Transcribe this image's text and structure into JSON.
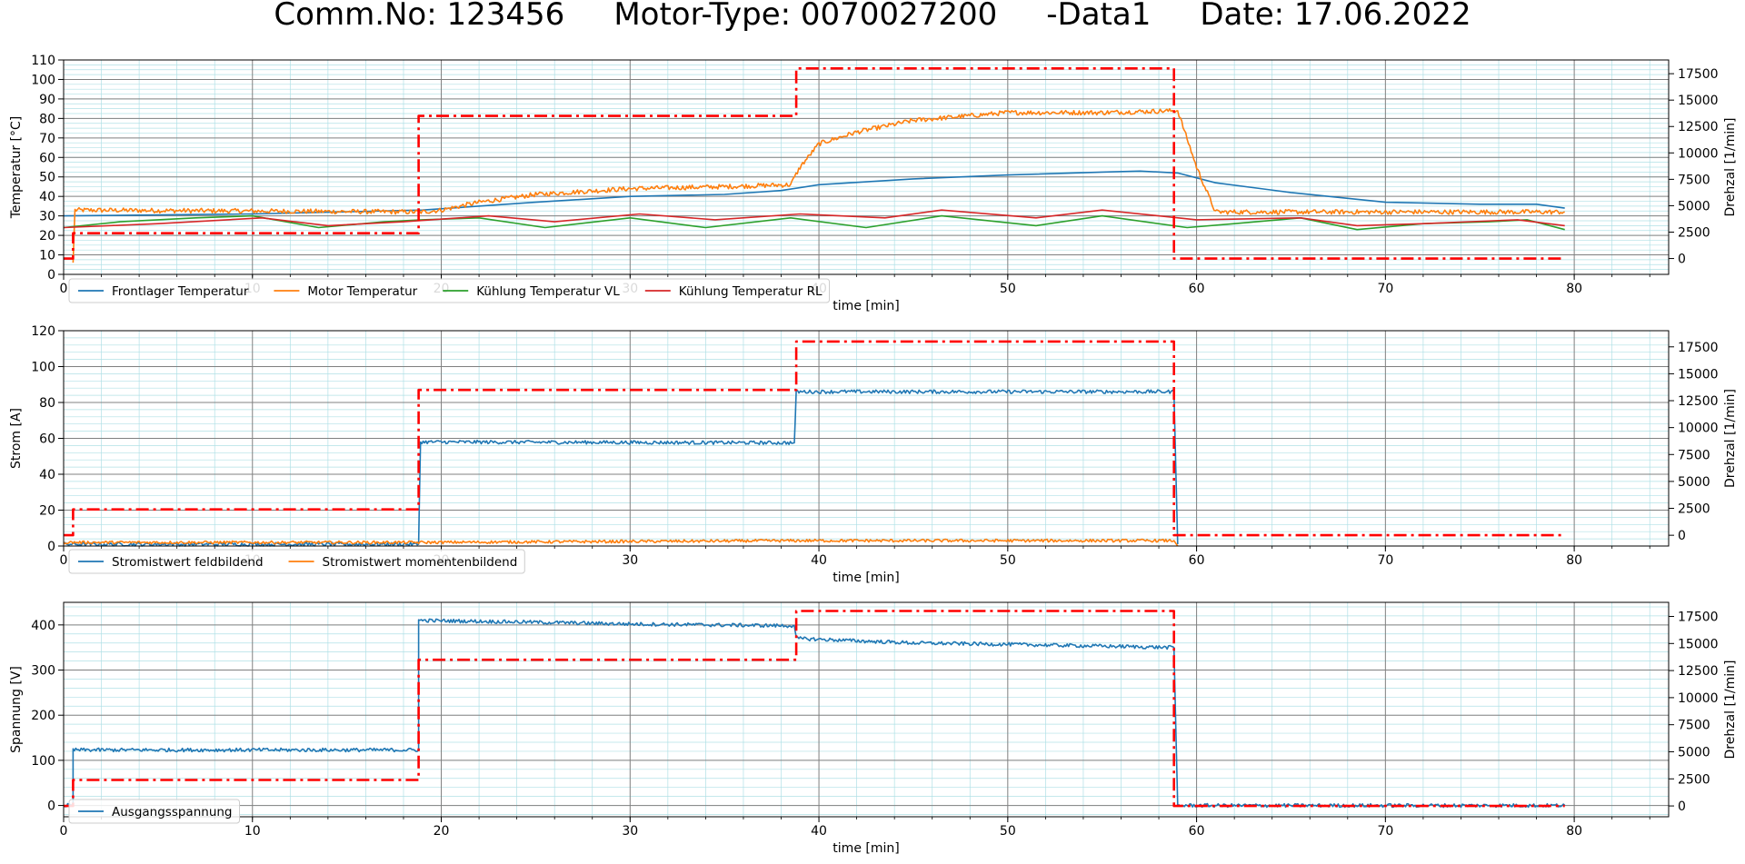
{
  "window": {
    "title": "Comm.No: 123456     Motor-Type: 0070027200     -Data1     Date: 17.06.2022"
  },
  "colors": {
    "blue": "#1f77b4",
    "orange": "#ff7f0e",
    "green": "#2ca02c",
    "red": "#d62728",
    "speed": "#ff0000",
    "grid_major": "#808080",
    "grid_minor": "#b0e0e6"
  },
  "chart_data": [
    {
      "type": "line",
      "xlabel": "time [min]",
      "ylabel": "Temperatur [°C]",
      "y2label": "Drehzal [1/min]",
      "xlim": [
        0,
        85
      ],
      "ylim": [
        0,
        110
      ],
      "y2lim": [
        -1500,
        18800
      ],
      "xticks": [
        0,
        10,
        20,
        30,
        40,
        50,
        60,
        70,
        80
      ],
      "yticks": [
        0,
        10,
        20,
        30,
        40,
        50,
        60,
        70,
        80,
        90,
        100,
        110
      ],
      "y2ticks": [
        0,
        2500,
        5000,
        7500,
        10000,
        12500,
        15000,
        17500
      ],
      "grid": true,
      "legend_position": "bottom-left",
      "series": [
        {
          "name": "Frontlager Temperatur",
          "axis": "left",
          "color": "#1f77b4",
          "noise": 0,
          "x": [
            0,
            10,
            19,
            25,
            30,
            35,
            38,
            40,
            45,
            50,
            55,
            57,
            59,
            61,
            65,
            70,
            75,
            78,
            79.5
          ],
          "y": [
            30,
            31,
            33,
            37,
            40,
            41,
            43,
            46,
            49,
            51,
            52.5,
            53,
            52,
            47,
            42,
            37,
            36,
            36,
            34
          ]
        },
        {
          "name": "Motor Temperatur",
          "axis": "left",
          "color": "#ff7f0e",
          "noise": 1.2,
          "x": [
            0.5,
            0.6,
            19,
            20,
            22,
            25,
            30,
            35,
            38.5,
            39,
            40,
            42,
            45,
            50,
            55,
            59,
            60,
            61,
            79.5
          ],
          "y": [
            6,
            33,
            32,
            33,
            37,
            41,
            44,
            45,
            46,
            55,
            67,
            73,
            79,
            83,
            83,
            84,
            55,
            32,
            32
          ]
        },
        {
          "name": "Kühlung Temperatur VL",
          "axis": "left",
          "color": "#2ca02c",
          "noise": 0,
          "x": [
            0,
            3,
            7,
            10,
            13.5,
            17,
            19,
            22,
            25.5,
            30,
            34,
            38.5,
            42.5,
            46.5,
            51.5,
            55,
            59.5,
            62,
            65.5,
            68.5,
            72,
            75.5,
            77.5,
            79.5
          ],
          "y": [
            24,
            27,
            29,
            30,
            24,
            27,
            28,
            29,
            24,
            29,
            24,
            29,
            24,
            30,
            25,
            30,
            24,
            26,
            29,
            23,
            26,
            27,
            28,
            23
          ]
        },
        {
          "name": "Kühlung Temperatur RL",
          "axis": "left",
          "color": "#d62728",
          "noise": 0,
          "x": [
            0,
            5,
            10.5,
            14,
            18,
            22.5,
            26,
            30.5,
            34.5,
            39,
            43.5,
            46.5,
            51.5,
            55,
            60,
            65.5,
            68.5,
            72,
            77,
            79.5
          ],
          "y": [
            24,
            26,
            29,
            25,
            27,
            30,
            27,
            31,
            28,
            31,
            29,
            33,
            29,
            33,
            28,
            29,
            25,
            26,
            28,
            25
          ]
        },
        {
          "name": "",
          "axis": "right",
          "color": "#ff0000",
          "style": "dashdot",
          "noise": 0,
          "x": [
            0,
            0.5,
            0.5,
            18.8,
            18.8,
            38.8,
            38.8,
            58.8,
            58.8,
            79.5
          ],
          "y": [
            0,
            0,
            2400,
            2400,
            13500,
            13500,
            18000,
            18000,
            0,
            0
          ]
        }
      ]
    },
    {
      "type": "line",
      "xlabel": "time [min]",
      "ylabel": "Strom [A]",
      "y2label": "Drehzal [1/min]",
      "xlim": [
        0,
        85
      ],
      "ylim": [
        0,
        120
      ],
      "y2lim": [
        -1000,
        19000
      ],
      "xticks": [
        0,
        10,
        20,
        30,
        40,
        50,
        60,
        70,
        80
      ],
      "yticks": [
        0,
        20,
        40,
        60,
        80,
        100,
        120
      ],
      "y2ticks": [
        0,
        2500,
        5000,
        7500,
        10000,
        12500,
        15000,
        17500
      ],
      "grid": true,
      "legend_position": "bottom-left",
      "series": [
        {
          "name": "Stromistwert feldbildend",
          "axis": "left",
          "color": "#1f77b4",
          "noise": 1.0,
          "x": [
            0,
            18.8,
            18.9,
            38.7,
            38.8,
            58.8,
            59
          ],
          "y": [
            1,
            1,
            58,
            57.5,
            86,
            86,
            1
          ]
        },
        {
          "name": "Stromistwert momentenbildend",
          "axis": "left",
          "color": "#ff7f0e",
          "noise": 0.8,
          "x": [
            0,
            18.8,
            39,
            58.8,
            59
          ],
          "y": [
            2,
            2,
            3,
            3,
            0
          ]
        },
        {
          "name": "",
          "axis": "right",
          "color": "#ff0000",
          "style": "dashdot",
          "noise": 0,
          "x": [
            0,
            0.5,
            0.5,
            18.8,
            18.8,
            38.8,
            38.8,
            58.8,
            58.8,
            79.5
          ],
          "y": [
            0,
            0,
            2400,
            2400,
            13500,
            13500,
            18000,
            18000,
            0,
            0
          ]
        }
      ]
    },
    {
      "type": "line",
      "xlabel": "time [min]",
      "ylabel": "Spannung [V]",
      "y2label": "Drehzal [1/min]",
      "xlim": [
        0,
        85
      ],
      "ylim": [
        -25,
        450
      ],
      "y2lim": [
        -1000,
        18800
      ],
      "xticks": [
        0,
        10,
        20,
        30,
        40,
        50,
        60,
        70,
        80
      ],
      "yticks": [
        0,
        100,
        200,
        300,
        400
      ],
      "y2ticks": [
        0,
        2500,
        5000,
        7500,
        10000,
        12500,
        15000,
        17500
      ],
      "grid": true,
      "legend_position": "bottom-left",
      "series": [
        {
          "name": "Ausgangsspannung",
          "axis": "left",
          "color": "#1f77b4",
          "noise": 4,
          "x": [
            0,
            0.5,
            0.5,
            18.8,
            18.8,
            25,
            30,
            38.7,
            38.8,
            45,
            50,
            58.8,
            59,
            79.5
          ],
          "y": [
            0,
            0,
            123,
            123,
            410,
            406,
            402,
            398,
            370,
            360,
            357,
            350,
            0,
            0
          ]
        },
        {
          "name": "",
          "axis": "right",
          "color": "#ff0000",
          "style": "dashdot",
          "noise": 0,
          "x": [
            0,
            0.5,
            0.5,
            18.8,
            18.8,
            38.8,
            38.8,
            58.8,
            58.8,
            79.5
          ],
          "y": [
            0,
            0,
            2400,
            2400,
            13500,
            13500,
            18000,
            18000,
            0,
            0
          ]
        }
      ]
    }
  ]
}
